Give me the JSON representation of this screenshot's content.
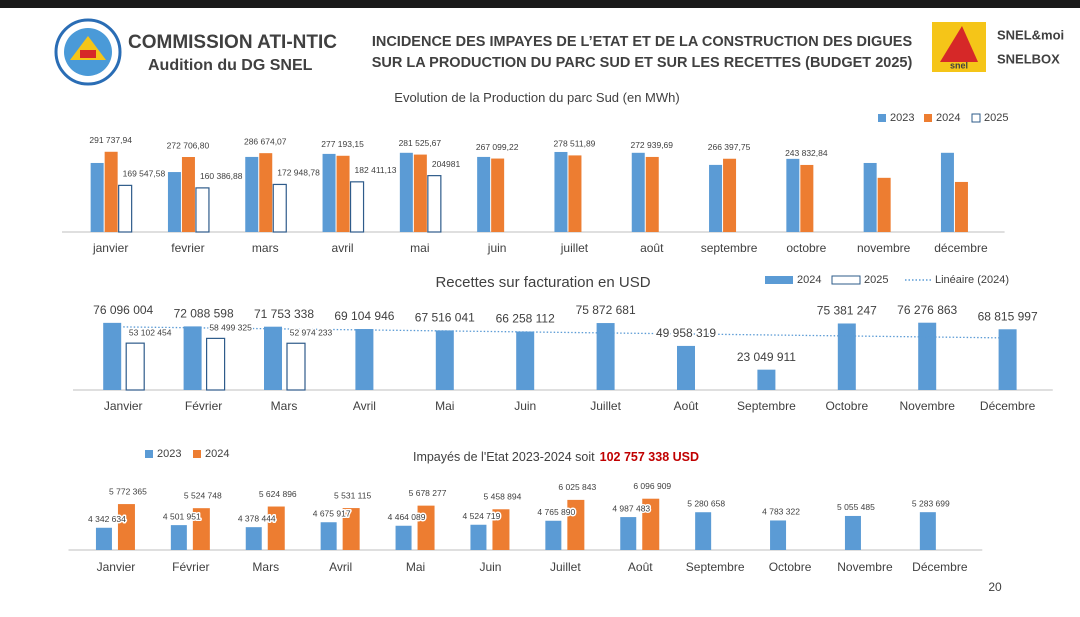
{
  "header": {
    "organization": "COMMISSION ATI-NTIC",
    "subtitle": "Audition du DG SNEL",
    "title_lines": [
      "INCIDENCE DES IMPAYES DE L’ETAT ET DE LA CONSTRUCTION DES DIGUES",
      "SUR LA PRODUCTION DU PARC SUD ET SUR LES RECETTES (BUDGET 2025)"
    ],
    "logo_text": "snel",
    "brand_lines": [
      "SNEL&moi",
      "SNELBOX"
    ]
  },
  "chart_data": [
    {
      "type": "bar",
      "title": "Evolution de la Production du parc Sud (en MWh)",
      "categories": [
        "janvier",
        "fevrier",
        "mars",
        "avril",
        "mai",
        "juin",
        "juillet",
        "août",
        "septembre",
        "octobre",
        "novembre",
        "décembre"
      ],
      "series": [
        {
          "name": "2023",
          "color": "#5b9bd5",
          "values": [
            251000,
            218000,
            273000,
            284000,
            288000,
            273000,
            291000,
            288000,
            244000,
            266000,
            251000,
            288000
          ]
        },
        {
          "name": "2024",
          "color": "#ed7d31",
          "values": [
            291737.94,
            272706.8,
            286674.07,
            277193.15,
            281525.67,
            267099.22,
            278511.89,
            272939.69,
            266397.75,
            243832.84,
            197000,
            182000
          ],
          "value_labels": [
            "291 737,94",
            "272 706,80",
            "286 674,07",
            "277 193,15",
            "281 525,67",
            "267 099,22",
            "278 511,89",
            "272 939,69",
            "266 397,75",
            "243 832,84",
            null,
            null
          ]
        },
        {
          "name": "2025",
          "color": "#ffffff",
          "outline": "#2e5b8a",
          "values": [
            169547.58,
            160386.88,
            172948.78,
            182411.13,
            204981,
            null,
            null,
            null,
            null,
            null,
            null,
            null
          ],
          "value_labels": [
            "169 547,58",
            "160 386,88",
            "172 948,78",
            "182 411,13",
            "204981",
            null,
            null,
            null,
            null,
            null,
            null,
            null
          ]
        }
      ],
      "ylim": [
        0,
        320000
      ],
      "legend": "top-right"
    },
    {
      "type": "bar",
      "title": "Recettes sur facturation en USD",
      "categories": [
        "Janvier",
        "Février",
        "Mars",
        "Avril",
        "Mai",
        "Juin",
        "Juillet",
        "Août",
        "Septembre",
        "Octobre",
        "Novembre",
        "Décembre"
      ],
      "series": [
        {
          "name": "2024",
          "color": "#5b9bd5",
          "values": [
            76096004,
            72088598,
            71753338,
            69104946,
            67516041,
            66258112,
            75872681,
            49958319,
            23049911,
            75381247,
            76276863,
            68815997
          ],
          "value_labels": [
            "76 096 004",
            "72 088 598",
            "71 753 338",
            "69 104 946",
            "67 516 041",
            "66 258 112",
            "75 872 681",
            "49 958 319",
            "23 049 911",
            "75 381 247",
            "76 276 863",
            "68 815 997"
          ]
        },
        {
          "name": "2025",
          "color": "#ffffff",
          "outline": "#2e5b8a",
          "values": [
            53102454,
            58499325,
            52974233,
            null,
            null,
            null,
            null,
            null,
            null,
            null,
            null,
            null
          ],
          "value_labels": [
            "53 102 454",
            "58 499 325",
            "52 974 233",
            null,
            null,
            null,
            null,
            null,
            null,
            null,
            null,
            null
          ]
        },
        {
          "name": "Linéaire (2024)",
          "type": "line",
          "style": "dotted",
          "color": "#5b9bd5",
          "values": [
            71500000,
            70360000,
            69230000,
            68090000,
            66950000,
            65820000,
            64680000,
            63550000,
            62410000,
            61270000,
            60140000,
            59000000
          ]
        }
      ],
      "ylim": [
        0,
        85000000
      ],
      "legend": "top-right"
    },
    {
      "type": "bar",
      "title": "Impayés de l'Etat 2023-2024 soit",
      "title_highlight": "102 757 338  USD",
      "categories": [
        "Janvier",
        "Février",
        "Mars",
        "Avril",
        "Mai",
        "Juin",
        "Juillet",
        "Août",
        "Septembre",
        "Octobre",
        "Novembre",
        "Décembre"
      ],
      "series": [
        {
          "name": "2023",
          "color": "#5b9bd5",
          "values": [
            4342634,
            4501951,
            4378444,
            4675917,
            4464089,
            4524719,
            4765890,
            4987483,
            5280658,
            4783322,
            5055485,
            5283699
          ],
          "value_labels": [
            "4 342 634",
            "4 501 951",
            "4 378 444",
            "4 675 917",
            "4 464 089",
            "4 524 719",
            "4 765 890",
            "4 987 483",
            "5 280 658",
            "4 783 322",
            "5 055 485",
            "5 283 699"
          ]
        },
        {
          "name": "2024",
          "color": "#ed7d31",
          "values": [
            5772365,
            5524748,
            5624896,
            5531115,
            5678277,
            5458894,
            6025843,
            6096909,
            null,
            null,
            null,
            null
          ],
          "value_labels": [
            "5 772 365",
            "5 524 748",
            "5 624 896",
            "5 531 115",
            "5 678 277",
            "5 458 894",
            "6 025 843",
            "6 096 909",
            null,
            null,
            null,
            null
          ]
        }
      ],
      "ylim": [
        3000000,
        6200000
      ],
      "legend": "top-left"
    }
  ],
  "page_number": 20
}
